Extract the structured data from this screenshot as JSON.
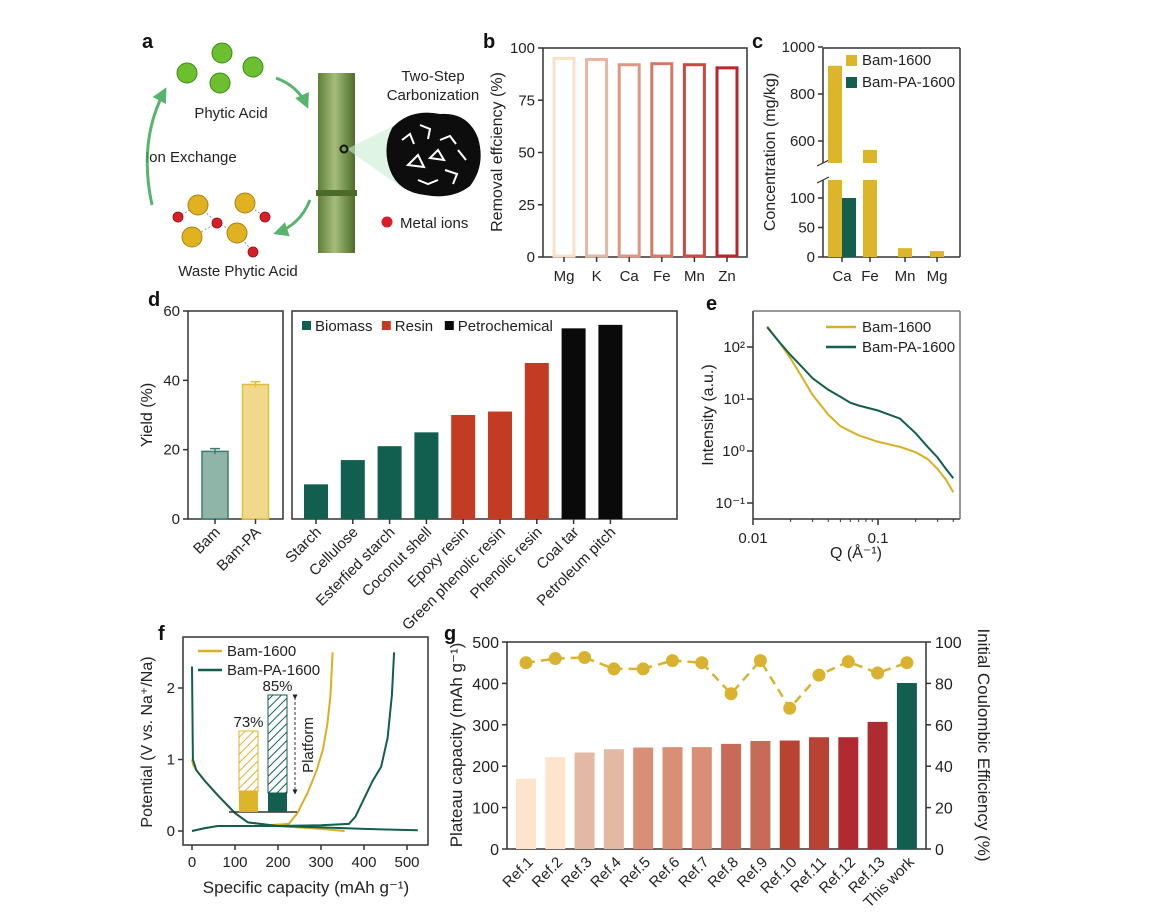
{
  "panel_labels": {
    "a": "a",
    "b": "b",
    "c": "c",
    "d": "d",
    "e": "e",
    "f": "f",
    "g": "g"
  },
  "schematic": {
    "phytic_acid": "Phytic Acid",
    "ion_exchange": "Ion Exchange",
    "waste_phytic_acid": "Waste Phytic Acid",
    "two_step": "Two-Step",
    "carbonization": "Carbonization",
    "metal_ions": "Metal ions",
    "colors": {
      "phytic": "#6cbf2e",
      "waste": "#e0b21f",
      "metal": "#d81f26",
      "bamboo": "#7a9a4a",
      "arrow": "#3aa655"
    }
  },
  "chart_data": [
    {
      "id": "b",
      "type": "bar",
      "categories": [
        "Mg",
        "K",
        "Ca",
        "Fe",
        "Mn",
        "Zn"
      ],
      "values": [
        95,
        94.5,
        92,
        92.5,
        92,
        90.5
      ],
      "colors": [
        "#fbe0c8",
        "#e6b8a2",
        "#dc9884",
        "#d47866",
        "#c84a40",
        "#b8262b"
      ],
      "style": "outlined",
      "ylabel": "Removal effciency (%)",
      "xlabel": "",
      "ylim": [
        0,
        100
      ],
      "yticks": [
        "0",
        "25",
        "50",
        "75",
        "100"
      ]
    },
    {
      "id": "c",
      "type": "bar",
      "broken_axis": true,
      "categories": [
        "Ca",
        "Fe",
        "Mn",
        "Mg"
      ],
      "series": [
        {
          "name": "Bam-1600",
          "values": [
            920,
            562,
            15,
            10
          ],
          "color": "#dcb52a"
        },
        {
          "name": "Bam-PA-1600",
          "values": [
            100,
            null,
            null,
            null
          ],
          "color": "#125e4f"
        }
      ],
      "ylabel": "Concentration (mg/kg)",
      "ylim_lower": [
        0,
        130
      ],
      "ylim_upper": [
        506,
        1000
      ],
      "yticks_lower": [
        "0",
        "50",
        "100"
      ],
      "yticks_upper": [
        "600",
        "800",
        "1000"
      ],
      "legend": "top-right"
    },
    {
      "id": "d-left",
      "type": "bar",
      "categories": [
        "Bam",
        "Bam-PA"
      ],
      "values": [
        19.5,
        38.8
      ],
      "errors": [
        0.8,
        0.8
      ],
      "colors": [
        "#8fb5a8",
        "#f0d98a"
      ],
      "edge_colors": [
        "#3e7d6c",
        "#e3be3c"
      ],
      "ylabel": "Yield (%)",
      "ylim": [
        0,
        60
      ],
      "yticks": [
        "0",
        "20",
        "40",
        "60"
      ]
    },
    {
      "id": "d-right",
      "type": "bar",
      "categories": [
        "Starch",
        "Cellulose",
        "Esterfied starch",
        "Coconut shell",
        "Epoxy resin",
        "Green phenolic resin",
        "Phenolic resin",
        "Coal tar",
        "Petroleum pitch"
      ],
      "values": [
        10,
        17,
        21,
        25,
        30,
        31,
        45,
        55,
        56
      ],
      "groups": [
        "Biomass",
        "Biomass",
        "Biomass",
        "Biomass",
        "Resin",
        "Resin",
        "Resin",
        "Petrochemical",
        "Petrochemical"
      ],
      "legend_entries": [
        {
          "name": "Biomass",
          "color": "#125e4f"
        },
        {
          "name": "Resin",
          "color": "#c33b22"
        },
        {
          "name": "Petrochemical",
          "color": "#0a0a0a"
        }
      ],
      "ylim": [
        0,
        60
      ],
      "legend": "top-left"
    },
    {
      "id": "e",
      "type": "line",
      "xscale": "log",
      "yscale": "log",
      "xlabel": "Q (Å⁻¹)",
      "ylabel": "Intensity (a.u.)",
      "xlim": [
        0.01,
        0.45
      ],
      "ylim": [
        0.05,
        500
      ],
      "xticks": [
        "0.01",
        "0.1"
      ],
      "yticks": [
        "10⁻¹",
        "10⁰",
        "10¹",
        "10²"
      ],
      "series": [
        {
          "name": "Bam-1600",
          "color": "#d9b021",
          "x": [
            0.013,
            0.016,
            0.02,
            0.025,
            0.03,
            0.04,
            0.05,
            0.06,
            0.07,
            0.1,
            0.15,
            0.2,
            0.25,
            0.3,
            0.35,
            0.4
          ],
          "y": [
            250,
            130,
            60,
            25,
            12,
            5,
            3,
            2.4,
            2,
            1.5,
            1.2,
            0.95,
            0.7,
            0.45,
            0.28,
            0.16
          ]
        },
        {
          "name": "Bam-PA-1600",
          "color": "#125e4f",
          "x": [
            0.013,
            0.016,
            0.02,
            0.025,
            0.03,
            0.04,
            0.05,
            0.06,
            0.07,
            0.1,
            0.15,
            0.2,
            0.25,
            0.3,
            0.35,
            0.4
          ],
          "y": [
            240,
            130,
            70,
            40,
            25,
            15,
            11,
            8.5,
            7.5,
            6,
            4.2,
            2.2,
            1.2,
            0.75,
            0.45,
            0.3
          ]
        }
      ],
      "legend": "top-right"
    },
    {
      "id": "f",
      "type": "line",
      "xlabel": "Specific capacity (mAh g⁻¹)",
      "ylabel": "Potential (V vs. Na⁺/Na)",
      "xlim": [
        -15,
        545
      ],
      "ylim": [
        -0.2,
        2.7
      ],
      "xticks": [
        "0",
        "100",
        "200",
        "300",
        "400",
        "500"
      ],
      "yticks": [
        "0",
        "1",
        "2"
      ],
      "series": [
        {
          "name": "Bam-1600",
          "color": "#d9b021",
          "discharge": {
            "x": [
              0,
              3,
              10,
              30,
              60,
              100,
              130,
              200,
              300,
              355
            ],
            "y": [
              1.0,
              0.92,
              0.85,
              0.7,
              0.5,
              0.25,
              0.12,
              0.07,
              0.03,
              0.0
            ]
          },
          "charge": {
            "x": [
              0,
              30,
              60,
              150,
              225,
              245,
              270,
              290,
              305,
              315,
              322,
              327
            ],
            "y": [
              0,
              0.04,
              0.07,
              0.07,
              0.1,
              0.25,
              0.55,
              0.85,
              1.15,
              1.5,
              1.9,
              2.5
            ]
          }
        },
        {
          "name": "Bam-PA-1600",
          "color": "#125e4f",
          "discharge": {
            "x": [
              0,
              2,
              10,
              30,
              60,
              100,
              130,
              200,
              300,
              400,
              525
            ],
            "y": [
              2.3,
              1.0,
              0.85,
              0.7,
              0.5,
              0.25,
              0.12,
              0.07,
              0.05,
              0.03,
              0.01
            ]
          },
          "charge": {
            "x": [
              0,
              30,
              60,
              200,
              300,
              365,
              380,
              400,
              420,
              440,
              455,
              465,
              470
            ],
            "y": [
              0,
              0.04,
              0.07,
              0.07,
              0.08,
              0.1,
              0.2,
              0.45,
              0.7,
              0.9,
              1.3,
              1.9,
              2.5
            ]
          }
        }
      ],
      "inset": {
        "bars": [
          {
            "label": "73%",
            "value": 73,
            "color": "#dcb52a"
          },
          {
            "label": "85%",
            "value": 85,
            "color": "#125e4f"
          }
        ],
        "annotation": "Platform"
      },
      "legend": "top-left"
    },
    {
      "id": "g",
      "type": "bar+line",
      "categories": [
        "Ref.1",
        "Ref.2",
        "Ref.3",
        "Ref.4",
        "Ref.5",
        "Ref.6",
        "Ref.7",
        "Ref.8",
        "Ref.9",
        "Ref.10",
        "Ref.11",
        "Ref.12",
        "Ref.13",
        "This work"
      ],
      "bar_values": [
        170,
        222,
        233,
        241,
        245,
        246,
        246,
        254,
        261,
        262,
        270,
        270,
        307,
        401
      ],
      "bar_colors": [
        "#fde4cd",
        "#fde4cd",
        "#e3b9a3",
        "#e3b9a3",
        "#d88f76",
        "#d88f76",
        "#d88f76",
        "#c86a58",
        "#c86a58",
        "#b84332",
        "#b84332",
        "#b02a31",
        "#b02a31",
        "#125e4f"
      ],
      "line_values": [
        90,
        92,
        92.5,
        87,
        87,
        91,
        90,
        75,
        91,
        68,
        84,
        90.5,
        85,
        90
      ],
      "line_color": "#d9b330",
      "ylabel_left": "Plateau capacity (mAh g⁻¹)",
      "ylabel_left_color": "#b02a31",
      "ylabel_right": "Initial Coulombic Efficiency (%)",
      "ylabel_right_color": "#d9b330",
      "ylim_left": [
        0,
        500
      ],
      "ylim_right": [
        0,
        100
      ],
      "yticks_left": [
        "0",
        "100",
        "200",
        "300",
        "400",
        "500"
      ],
      "yticks_right": [
        "0",
        "20",
        "40",
        "60",
        "80",
        "100"
      ]
    }
  ]
}
